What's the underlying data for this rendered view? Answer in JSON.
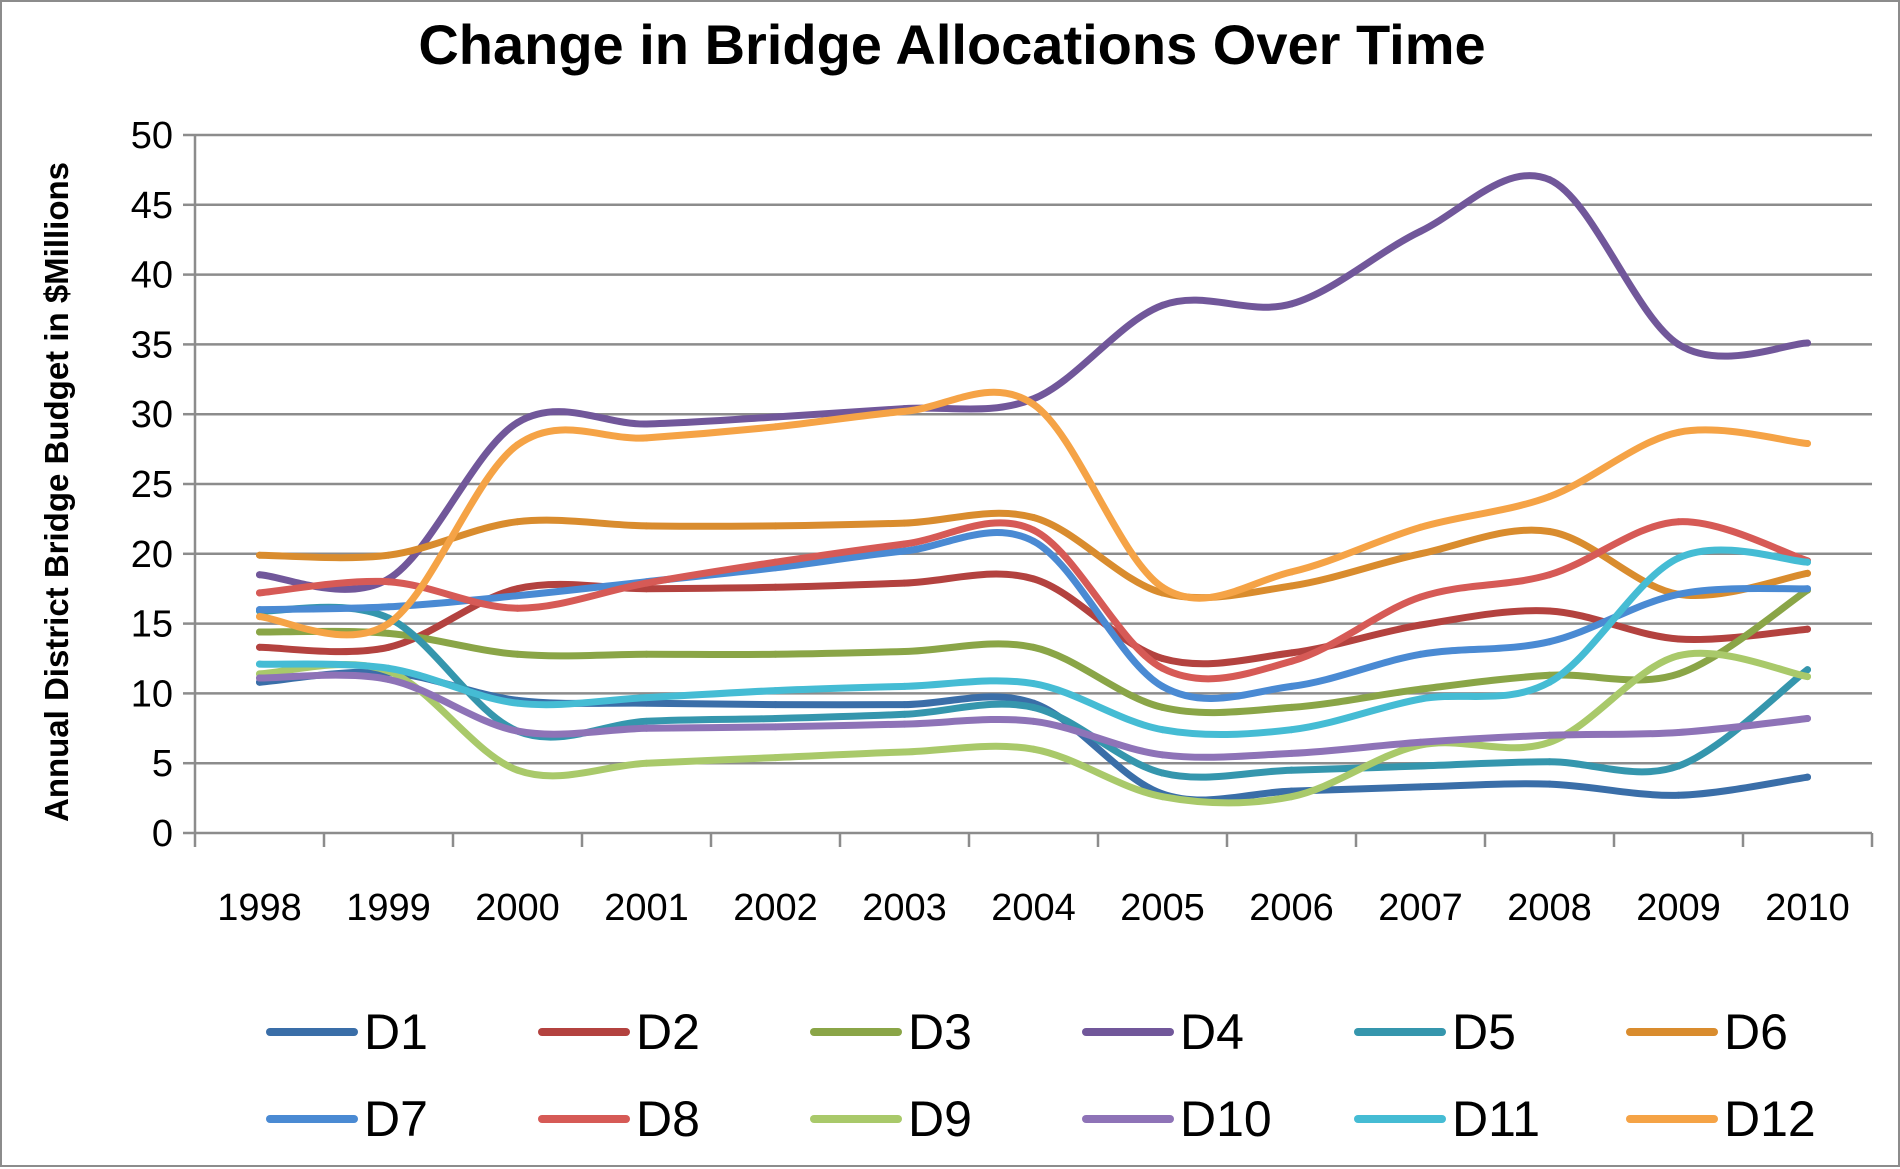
{
  "chart_data": {
    "type": "line",
    "title": "Change in Bridge Allocations Over Time",
    "xlabel": "",
    "ylabel": "Annual District Bridge Budget in $Millions",
    "ylim": [
      0,
      50
    ],
    "yticks": [
      "0",
      "5",
      "10",
      "15",
      "20",
      "25",
      "30",
      "35",
      "40",
      "45",
      "50"
    ],
    "categories": [
      "1998",
      "1999",
      "2000",
      "2001",
      "2002",
      "2003",
      "2004",
      "2005",
      "2006",
      "2007",
      "2008",
      "2009",
      "2010"
    ],
    "grid": "horizontal",
    "legend_position": "bottom",
    "series": [
      {
        "name": "D1",
        "color": "#3a6ea8",
        "values": [
          10.8,
          11.5,
          9.5,
          9.3,
          9.2,
          9.2,
          9.3,
          2.8,
          3.0,
          3.3,
          3.5,
          2.7,
          4.0
        ]
      },
      {
        "name": "D2",
        "color": "#b3423f",
        "values": [
          13.3,
          13.3,
          17.5,
          17.5,
          17.6,
          17.9,
          18.2,
          12.5,
          12.9,
          14.9,
          15.9,
          13.9,
          14.6
        ]
      },
      {
        "name": "D3",
        "color": "#8aa547",
        "values": [
          14.4,
          14.3,
          12.8,
          12.8,
          12.8,
          13.0,
          13.3,
          9.0,
          9.0,
          10.3,
          11.3,
          11.4,
          17.4
        ]
      },
      {
        "name": "D4",
        "color": "#71579a",
        "values": [
          18.5,
          18.2,
          29.4,
          29.3,
          29.8,
          30.4,
          31.1,
          37.8,
          37.9,
          43.1,
          46.8,
          35.0,
          35.1
        ]
      },
      {
        "name": "D5",
        "color": "#3596ad",
        "values": [
          15.9,
          15.4,
          7.3,
          8.0,
          8.2,
          8.5,
          9.0,
          4.3,
          4.5,
          4.8,
          5.1,
          4.8,
          11.7
        ]
      },
      {
        "name": "D6",
        "color": "#d98c2e",
        "values": [
          19.9,
          19.9,
          22.3,
          22.0,
          22.0,
          22.2,
          22.6,
          17.2,
          17.7,
          20.0,
          21.6,
          17.1,
          18.6
        ]
      },
      {
        "name": "D7",
        "color": "#4a8ad3",
        "values": [
          16.0,
          16.2,
          17.0,
          18.0,
          19.0,
          20.2,
          20.9,
          10.5,
          10.5,
          12.8,
          13.7,
          17.1,
          17.5
        ]
      },
      {
        "name": "D8",
        "color": "#d65a56",
        "values": [
          17.2,
          18.0,
          16.1,
          17.9,
          19.4,
          20.7,
          21.7,
          11.8,
          12.3,
          16.9,
          18.5,
          22.3,
          19.5
        ]
      },
      {
        "name": "D9",
        "color": "#a9c96a",
        "values": [
          11.4,
          11.6,
          4.5,
          5.0,
          5.4,
          5.8,
          6.0,
          2.6,
          2.6,
          6.3,
          6.5,
          12.7,
          11.2
        ]
      },
      {
        "name": "D10",
        "color": "#8e73b7",
        "values": [
          11.1,
          11.0,
          7.3,
          7.5,
          7.6,
          7.8,
          8.0,
          5.6,
          5.7,
          6.5,
          7.0,
          7.2,
          8.2
        ]
      },
      {
        "name": "D11",
        "color": "#45bcd4",
        "values": [
          12.1,
          11.8,
          9.3,
          9.7,
          10.2,
          10.5,
          10.7,
          7.4,
          7.4,
          9.6,
          10.8,
          19.7,
          19.4
        ]
      },
      {
        "name": "D12",
        "color": "#f5a346",
        "values": [
          15.5,
          15.0,
          27.8,
          28.3,
          29.1,
          30.2,
          30.7,
          17.6,
          18.7,
          21.9,
          24.1,
          28.7,
          27.9
        ]
      }
    ]
  }
}
